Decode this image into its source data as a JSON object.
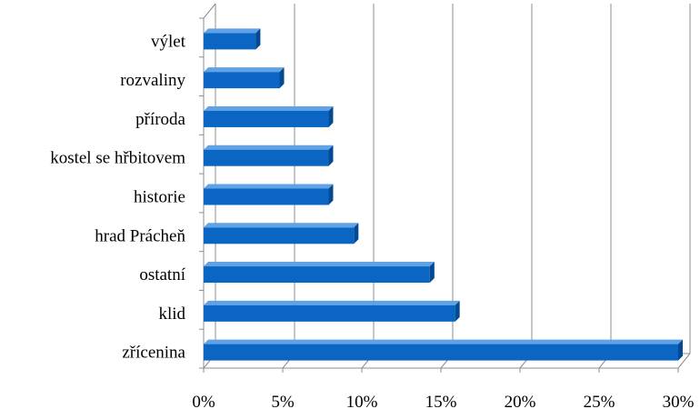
{
  "chart_data": {
    "type": "bar",
    "orientation": "horizontal",
    "style": "3d",
    "categories": [
      "výlet",
      "rozvaliny",
      "příroda",
      "kostel se hřbitovem",
      "historie",
      "hrad Prácheň",
      "ostatní",
      "klid",
      "zřícenina"
    ],
    "values": [
      3.3,
      4.8,
      7.9,
      7.9,
      7.9,
      9.5,
      14.3,
      15.9,
      30.0
    ],
    "x_ticks": [
      0,
      5,
      10,
      15,
      20,
      25,
      30
    ],
    "x_tick_labels": [
      "0%",
      "5%",
      "10%",
      "15%",
      "20%",
      "25%",
      "30%"
    ],
    "xlim": [
      0,
      30
    ],
    "unit": "%",
    "title": "",
    "xlabel": "",
    "ylabel": "",
    "grid": true,
    "legend": "none",
    "colors": {
      "bar_front": "#0a66c2",
      "bar_top": "#5fa2e6",
      "bar_side": "#044a92",
      "gridline": "#8c8c8c",
      "wall": "#bfbfbf"
    }
  }
}
